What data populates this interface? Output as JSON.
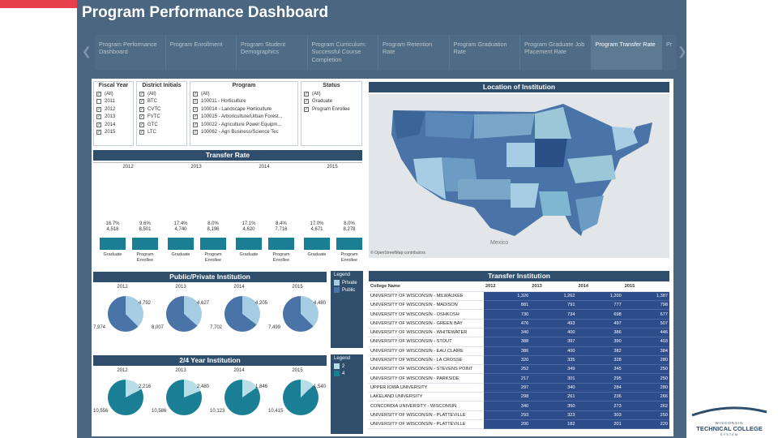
{
  "title": "Program Performance Dashboard",
  "tabs": [
    {
      "label": "Program Performance Dashboard"
    },
    {
      "label": "Program Enrollment"
    },
    {
      "label": "Program Student Demographics"
    },
    {
      "label": "Program Curriculum: Successful Course Completion"
    },
    {
      "label": "Program Retention Rate"
    },
    {
      "label": "Program Graduation Rate"
    },
    {
      "label": "Program Graduate Job Placement Rate"
    },
    {
      "label": "Program Transfer Rate"
    },
    {
      "label": "Pr"
    }
  ],
  "filters": {
    "fiscal_year": {
      "title": "Fiscal Year",
      "options": [
        "(All)",
        "2011",
        "2012",
        "2013",
        "2014",
        "2015"
      ]
    },
    "district": {
      "title": "District Initials",
      "options": [
        "(All)",
        "BTC",
        "CVTC",
        "FVTC",
        "GTC",
        "LTC"
      ]
    },
    "program": {
      "title": "Program",
      "options": [
        "(All)",
        "100011 - Horticulture",
        "100014 - Landscape Horticulture",
        "100015 - Arboriculture/Urban Forest...",
        "100022 - Agriculture Power Equipm...",
        "100062 - Agri Business/Science Tec"
      ]
    },
    "status": {
      "title": "Status",
      "options": [
        "(All)",
        "Graduate",
        "Program Enrollee"
      ]
    }
  },
  "transfer_rate": {
    "title": "Transfer Rate",
    "years": [
      "2012",
      "2013",
      "2014",
      "2015"
    ],
    "groups": [
      {
        "grad_pct": "16.7%",
        "grad_n": "4,518",
        "enr_pct": "9.6%",
        "enr_n": "8,501"
      },
      {
        "grad_pct": "17.4%",
        "grad_n": "4,740",
        "enr_pct": "8.0%",
        "enr_n": "8,196"
      },
      {
        "grad_pct": "17.1%",
        "grad_n": "4,620",
        "enr_pct": "8.4%",
        "enr_n": "7,716"
      },
      {
        "grad_pct": "17.0%",
        "grad_n": "4,671",
        "enr_pct": "8.0%",
        "enr_n": "8,278"
      }
    ],
    "grad_label": "Graduate",
    "enr_label": "Program Enrollee"
  },
  "map": {
    "title": "Location of Institution",
    "credit": "© OpenStreetMap contributors",
    "country_label": "Mexico"
  },
  "public_private": {
    "title": "Public/Private Institution",
    "years": [
      "2012",
      "2013",
      "2014",
      "2015"
    ],
    "left_vals": [
      "7,974",
      "8,007",
      "7,702",
      "7,499"
    ],
    "right_vals": [
      "4,792",
      "4,627",
      "4,205",
      "4,480"
    ],
    "legend_title": "Legend",
    "legend": [
      "Private",
      "Public"
    ]
  },
  "two_four": {
    "title": "2/4 Year Institution",
    "years": [
      "2012",
      "2013",
      "2014",
      "2015"
    ],
    "left_vals": [
      "10,556",
      "10,586",
      "10,123",
      "10,415"
    ],
    "right_vals": [
      "2,216",
      "2,480",
      "1,846",
      "1,540"
    ],
    "legend_title": "Legend",
    "legend": [
      "2",
      "4"
    ]
  },
  "transfer_inst": {
    "title": "Transfer Institution",
    "col_header": "College Name",
    "years": [
      "2012",
      "2013",
      "2014",
      "2015"
    ],
    "rows": [
      {
        "name": "UNIVERSITY OF WISCONSIN - MILWAUKEE",
        "v": [
          "1,326",
          "1,262",
          "1,200",
          "1,387"
        ]
      },
      {
        "name": "UNIVERSITY OF WISCONSIN - MADISON",
        "v": [
          "881",
          "791",
          "777",
          "798"
        ]
      },
      {
        "name": "UNIVERSITY OF WISCONSIN - OSHKOSH",
        "v": [
          "730",
          "734",
          "698",
          "677"
        ]
      },
      {
        "name": "UNIVERSITY OF WISCONSIN - GREEN BAY",
        "v": [
          "476",
          "493",
          "497",
          "507"
        ]
      },
      {
        "name": "UNIVERSITY OF WISCONSIN - WHITEWATER",
        "v": [
          "340",
          "400",
          "386",
          "446"
        ]
      },
      {
        "name": "UNIVERSITY OF WISCONSIN - STOUT",
        "v": [
          "388",
          "397",
          "390",
          "403"
        ]
      },
      {
        "name": "UNIVERSITY OF WISCONSIN - EAU CLAIRE",
        "v": [
          "386",
          "400",
          "382",
          "384"
        ]
      },
      {
        "name": "UNIVERSITY OF WISCONSIN - LA CROSSE",
        "v": [
          "320",
          "335",
          "328",
          "280"
        ]
      },
      {
        "name": "UNIVERSITY OF WISCONSIN - STEVENS POINT",
        "v": [
          "252",
          "349",
          "345",
          "250"
        ]
      },
      {
        "name": "UNIVERSITY OF WISCONSIN - PARKSIDE",
        "v": [
          "217",
          "301",
          "295",
          "250"
        ]
      },
      {
        "name": "UPPER IOWA UNIVERSITY",
        "v": [
          "297",
          "340",
          "284",
          "280"
        ]
      },
      {
        "name": "LAKELAND UNIVERSITY",
        "v": [
          "298",
          "261",
          "236",
          "266"
        ]
      },
      {
        "name": "CONCORDIA UNIVERSITY - WISCONSIN",
        "v": [
          "340",
          "350",
          "273",
          "262"
        ]
      },
      {
        "name": "UNIVERSITY OF WISCONSIN - PLATTEVILLE",
        "v": [
          "293",
          "323",
          "303",
          "250"
        ]
      },
      {
        "name": "UNIVERSITY OF WISCONSIN - PLATTEVILLE",
        "v": [
          "200",
          "182",
          "201",
          "220"
        ]
      }
    ]
  },
  "logo": {
    "line1": "WISCONSIN",
    "line2": "TECHNICAL COLLEGE",
    "line3": "SYSTEM"
  },
  "colors": {
    "dark": "#2e4e6c",
    "teal": "#1a7f94",
    "pie_dark": "#4a74a8",
    "pie_light": "#a6cde3",
    "pie_teal": "#1a7f94",
    "pie_teal_light": "#b7dde6"
  }
}
